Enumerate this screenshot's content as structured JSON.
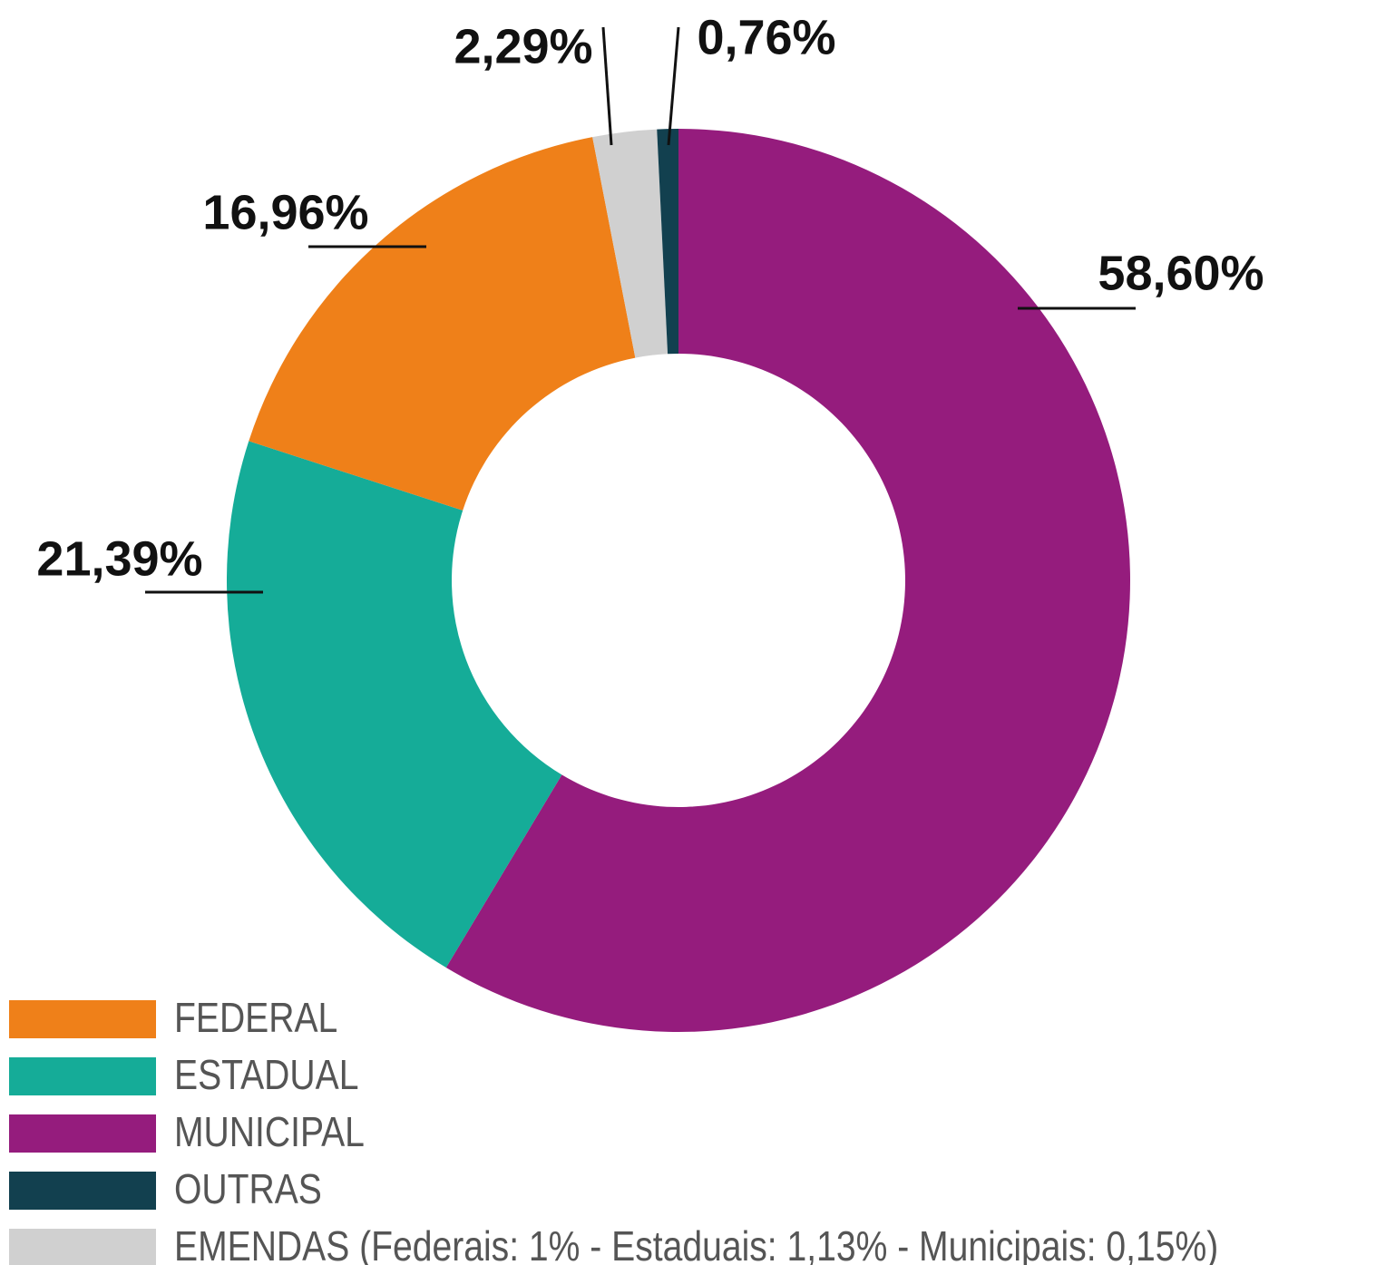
{
  "chart_data": {
    "type": "donut",
    "categories": [
      "FEDERAL",
      "ESTADUAL",
      "MUNICIPAL",
      "OUTRAS",
      "EMENDAS (Federais: 1% - Estaduais: 1,13% - Municipais: 0,15%)"
    ],
    "values": [
      16.96,
      21.39,
      58.6,
      0.76,
      2.29
    ],
    "value_labels": [
      "16,96%",
      "21,39%",
      "58,60%",
      "0,76%",
      "2,29%"
    ],
    "colors": [
      "#ef8019",
      "#15ac98",
      "#951c7d",
      "#12404f",
      "#d0d0d0"
    ],
    "legend": "bottom-left"
  }
}
